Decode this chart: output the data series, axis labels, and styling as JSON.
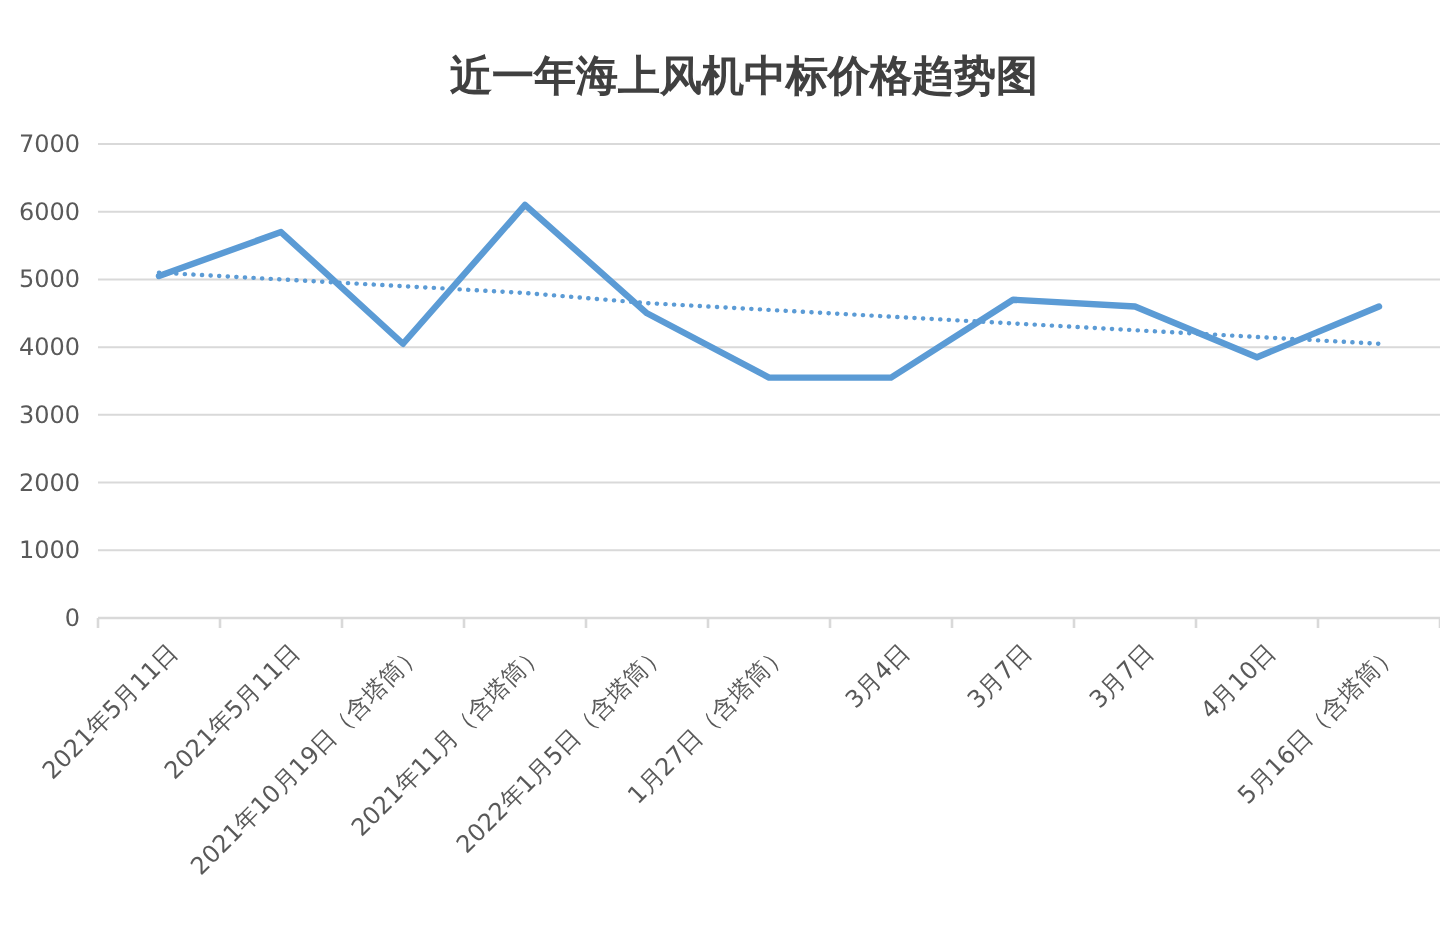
{
  "chart_data": {
    "type": "line",
    "title": "近一年海上风机中标价格趋势图",
    "categories": [
      "2021年5月11日",
      "2021年5月11日",
      "2021年10月19日（含塔筒）",
      "2021年11月（含塔筒）",
      "2022年1月5日（含塔筒）",
      "1月27日（含塔筒）",
      "3月4日",
      "3月7日",
      "3月7日",
      "4月10日",
      "5月16日（含塔筒）"
    ],
    "series": [
      {
        "color": "#5b9bd5",
        "values": [
          5050,
          5700,
          4050,
          6100,
          4500,
          3550,
          3550,
          4700,
          4600,
          3850,
          4600
        ]
      },
      {
        "type": "line",
        "color": "#5b9bd5",
        "line_style": "dotted",
        "values": [
          5100,
          5000,
          4900,
          4800,
          4650,
          4550,
          4450,
          4350,
          4250,
          4150,
          4050
        ]
      }
    ],
    "ylim": [
      0,
      7000
    ],
    "yticks": [
      0,
      1000,
      2000,
      3000,
      4000,
      5000,
      6000,
      7000
    ],
    "grid": "y",
    "line_style": "solid"
  }
}
